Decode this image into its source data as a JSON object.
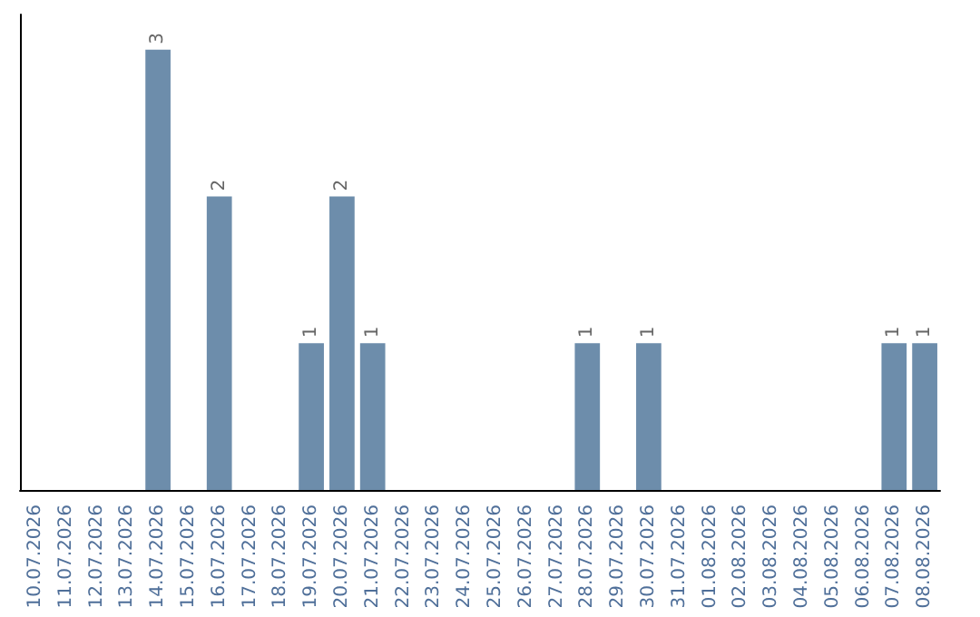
{
  "chart_data": {
    "type": "bar",
    "categories": [
      "10.07.2026",
      "11.07.2026",
      "12.07.2026",
      "13.07.2026",
      "14.07.2026",
      "15.07.2026",
      "16.07.2026",
      "17.07.2026",
      "18.07.2026",
      "19.07.2026",
      "20.07.2026",
      "21.07.2026",
      "22.07.2026",
      "23.07.2026",
      "24.07.2026",
      "25.07.2026",
      "26.07.2026",
      "27.07.2026",
      "28.07.2026",
      "29.07.2026",
      "30.07.2026",
      "31.07.2026",
      "01.08.2026",
      "02.08.2026",
      "03.08.2026",
      "04.08.2026",
      "05.08.2026",
      "06.08.2026",
      "07.08.2026",
      "08.08.2026"
    ],
    "values": [
      0,
      0,
      0,
      0,
      3,
      0,
      2,
      0,
      0,
      1,
      2,
      1,
      0,
      0,
      0,
      0,
      0,
      0,
      1,
      0,
      1,
      0,
      0,
      0,
      0,
      0,
      0,
      0,
      1,
      1
    ],
    "value_labels": [
      null,
      null,
      null,
      null,
      "3",
      null,
      "2",
      null,
      null,
      "1",
      "2",
      "1",
      null,
      null,
      null,
      null,
      null,
      null,
      "1",
      null,
      "1",
      null,
      null,
      null,
      null,
      null,
      null,
      null,
      "1",
      "1"
    ],
    "color": "#6d8dab",
    "tick_labels": "x",
    "grid": false
  }
}
